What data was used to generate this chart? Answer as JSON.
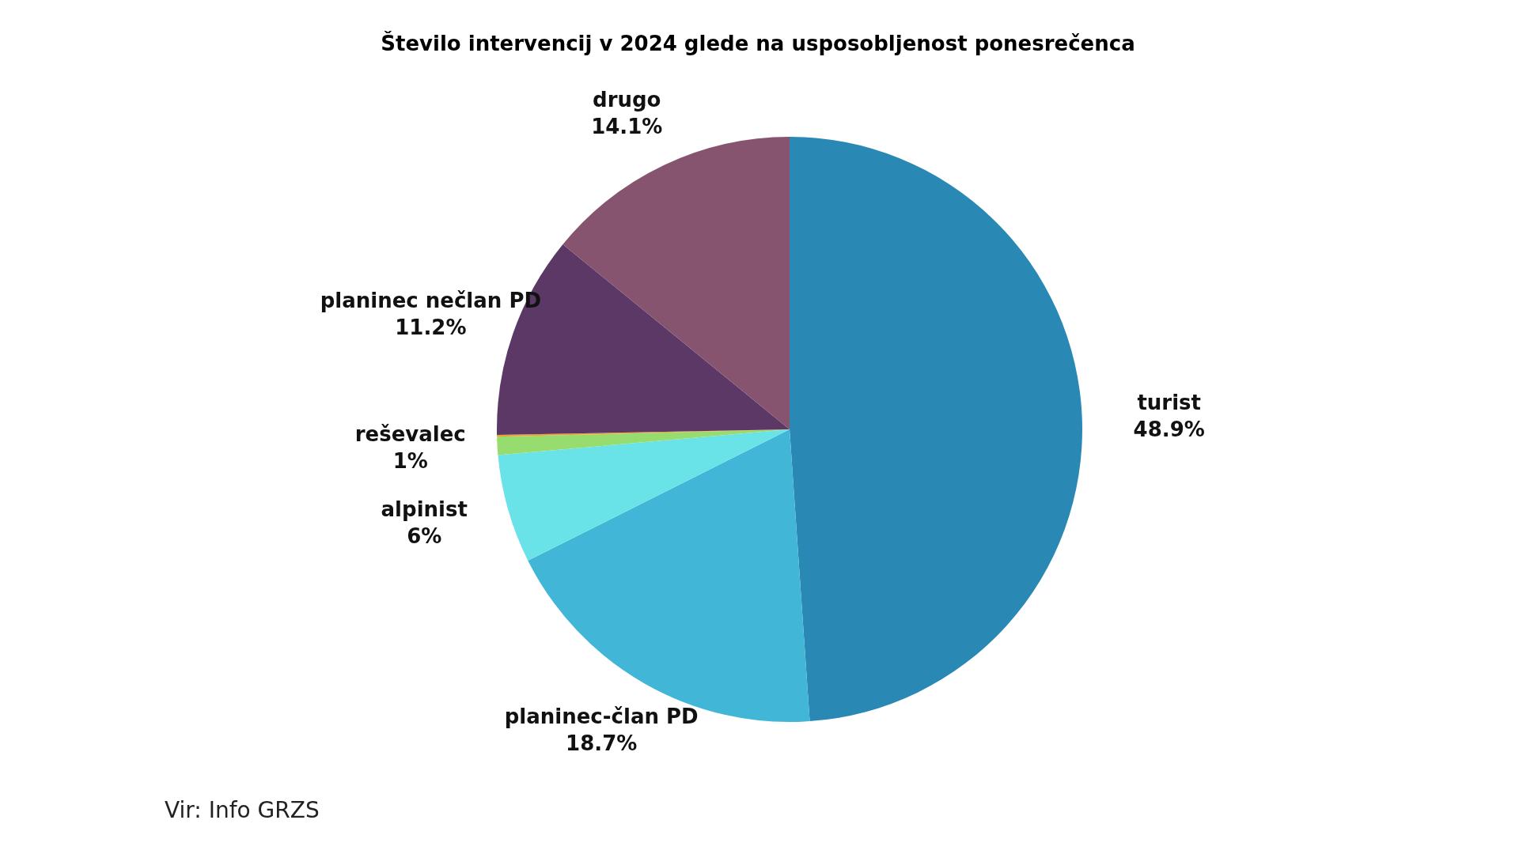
{
  "chart_data": {
    "type": "pie",
    "title": "Število intervencij v 2024 glede na usposobljenost ponesrečenca",
    "categories": [
      "turist",
      "planinec-član PD",
      "alpinist",
      "reševalec",
      null,
      "planinec nečlan PD",
      "drugo"
    ],
    "values": [
      48.9,
      18.7,
      6,
      1,
      0.1,
      11.2,
      14.1
    ],
    "value_labels": [
      "48.9%",
      "18.7%",
      "6%",
      "1%",
      null,
      "11.2%",
      "14.1%"
    ],
    "colors": [
      "#2a88b5",
      "#42b6d6",
      "#6ae3e8",
      "#96dc6e",
      "#f0a030",
      "#5c3866",
      "#875470"
    ],
    "legend": false,
    "annotations": [
      "Vir: Info GRZS"
    ]
  }
}
